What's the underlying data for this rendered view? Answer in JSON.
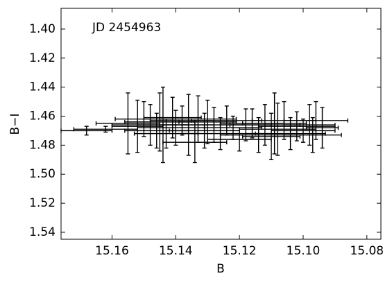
{
  "chart_data": {
    "type": "errorbar",
    "annotation": "JD 2454963",
    "x_label": "B",
    "y_label": "B−I",
    "xlim": [
      15.176,
      15.0756
    ],
    "ylim": [
      1.3857,
      1.5448
    ],
    "y_inverted": true,
    "xticks": [
      15.16,
      15.14,
      15.12,
      {
        "value": 15.1,
        "label": "15.10"
      },
      15.08
    ],
    "yticks": [
      {
        "value": 1.4,
        "label": "1.40"
      },
      1.42,
      1.44,
      1.46,
      1.48,
      {
        "value": 1.5,
        "label": "1.50"
      },
      1.52,
      1.54
    ],
    "color": "#000000",
    "x": [
      15.168,
      15.162,
      15.155,
      15.152,
      15.15,
      15.148,
      15.146,
      15.145,
      15.144,
      15.143,
      15.141,
      15.14,
      15.138,
      15.136,
      15.134,
      15.133,
      15.131,
      15.13,
      15.128,
      15.126,
      15.124,
      15.122,
      15.12,
      15.118,
      15.116,
      15.114,
      15.112,
      15.11,
      15.109,
      15.108,
      15.106,
      15.104,
      15.102,
      15.1,
      15.098,
      15.097,
      15.096,
      15.094
    ],
    "y": [
      1.47,
      1.469,
      1.465,
      1.467,
      1.462,
      1.466,
      1.47,
      1.464,
      1.466,
      1.472,
      1.461,
      1.468,
      1.463,
      1.466,
      1.478,
      1.462,
      1.47,
      1.464,
      1.466,
      1.472,
      1.463,
      1.468,
      1.476,
      1.466,
      1.465,
      1.473,
      1.466,
      1.474,
      1.465,
      1.469,
      1.463,
      1.472,
      1.467,
      1.47,
      1.466,
      1.473,
      1.463,
      1.468
    ],
    "xerr": [
      0.008,
      0.01,
      0.01,
      0.008,
      0.009,
      0.012,
      0.01,
      0.011,
      0.008,
      0.01,
      0.009,
      0.012,
      0.01,
      0.008,
      0.01,
      0.012,
      0.011,
      0.009,
      0.01,
      0.012,
      0.011,
      0.009,
      0.01,
      0.008,
      0.01,
      0.012,
      0.011,
      0.009,
      0.01,
      0.012,
      0.01,
      0.011,
      0.012,
      0.01,
      0.008,
      0.009,
      0.01,
      0.005
    ],
    "yerr": [
      0.003,
      0.002,
      0.021,
      0.018,
      0.012,
      0.014,
      0.012,
      0.02,
      0.026,
      0.01,
      0.014,
      0.012,
      0.01,
      0.021,
      0.014,
      0.016,
      0.012,
      0.015,
      0.012,
      0.011,
      0.01,
      0.008,
      0.008,
      0.011,
      0.01,
      0.012,
      0.014,
      0.016,
      0.021,
      0.018,
      0.013,
      0.011,
      0.01,
      0.008,
      0.014,
      0.012,
      0.013,
      0.014
    ]
  }
}
